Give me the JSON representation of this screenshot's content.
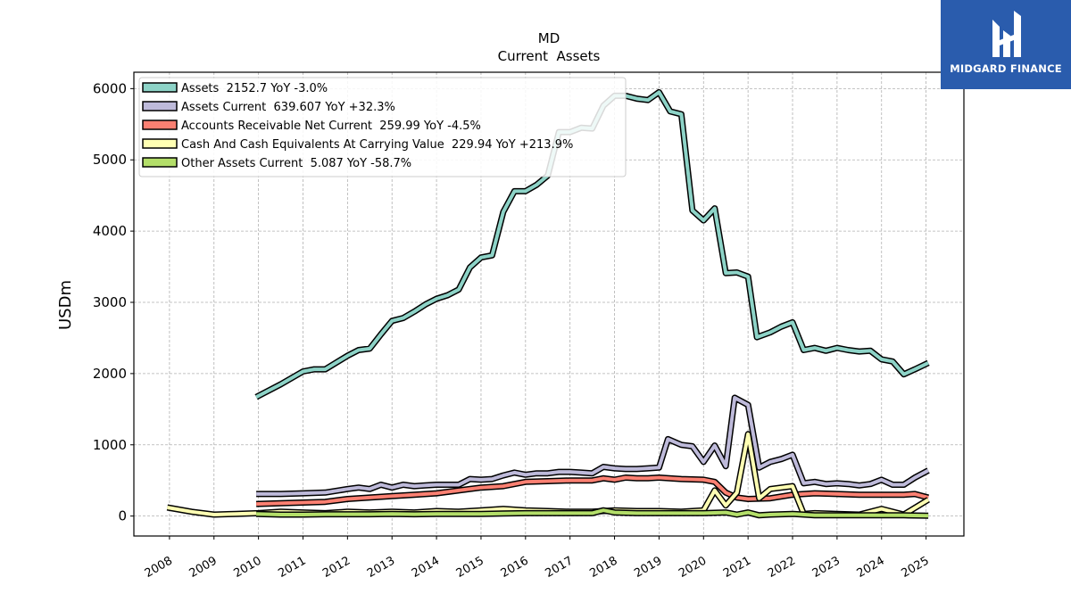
{
  "brand": {
    "name": "MIDGARD FINANCE",
    "color": "#2a5cad",
    "icon": "midgard-logo-icon"
  },
  "chart_data": {
    "type": "line",
    "title": "MD",
    "subtitle": "Current  Assets",
    "ylabel": "USDm",
    "xlabel": "",
    "xlim": [
      2007.2,
      2025.85
    ],
    "ylim": [
      -280,
      6230
    ],
    "yticks": [
      0,
      1000,
      2000,
      3000,
      4000,
      5000,
      6000
    ],
    "xticks": [
      2008,
      2009,
      2010,
      2011,
      2012,
      2013,
      2014,
      2015,
      2016,
      2017,
      2018,
      2019,
      2020,
      2021,
      2022,
      2023,
      2024,
      2025
    ],
    "grid": true,
    "legend_position": "top-left",
    "series": [
      {
        "name": "Assets",
        "legend": "Assets  2152.7 YoY -3.0%",
        "color": "#8dd3c7",
        "points": [
          [
            2009.95,
            1670
          ],
          [
            2010.5,
            1850
          ],
          [
            2011.0,
            2030
          ],
          [
            2011.25,
            2060
          ],
          [
            2011.5,
            2060
          ],
          [
            2012.0,
            2250
          ],
          [
            2012.25,
            2330
          ],
          [
            2012.5,
            2350
          ],
          [
            2012.75,
            2550
          ],
          [
            2013.0,
            2740
          ],
          [
            2013.25,
            2780
          ],
          [
            2013.5,
            2870
          ],
          [
            2013.75,
            2970
          ],
          [
            2014.0,
            3050
          ],
          [
            2014.25,
            3100
          ],
          [
            2014.5,
            3180
          ],
          [
            2014.75,
            3490
          ],
          [
            2015.0,
            3630
          ],
          [
            2015.25,
            3660
          ],
          [
            2015.5,
            4270
          ],
          [
            2015.75,
            4560
          ],
          [
            2016.0,
            4560
          ],
          [
            2016.25,
            4650
          ],
          [
            2016.5,
            4780
          ],
          [
            2016.75,
            5390
          ],
          [
            2017.0,
            5390
          ],
          [
            2017.25,
            5450
          ],
          [
            2017.5,
            5440
          ],
          [
            2017.75,
            5760
          ],
          [
            2018.0,
            5900
          ],
          [
            2018.25,
            5900
          ],
          [
            2018.5,
            5860
          ],
          [
            2018.75,
            5840
          ],
          [
            2019.0,
            5950
          ],
          [
            2019.25,
            5680
          ],
          [
            2019.5,
            5640
          ],
          [
            2019.75,
            4290
          ],
          [
            2020.0,
            4150
          ],
          [
            2020.25,
            4320
          ],
          [
            2020.5,
            3410
          ],
          [
            2020.75,
            3420
          ],
          [
            2021.0,
            3360
          ],
          [
            2021.2,
            2510
          ],
          [
            2021.5,
            2580
          ],
          [
            2021.75,
            2660
          ],
          [
            2022.0,
            2720
          ],
          [
            2022.25,
            2330
          ],
          [
            2022.5,
            2360
          ],
          [
            2022.75,
            2320
          ],
          [
            2023.0,
            2360
          ],
          [
            2023.25,
            2330
          ],
          [
            2023.5,
            2310
          ],
          [
            2023.75,
            2320
          ],
          [
            2024.0,
            2200
          ],
          [
            2024.25,
            2170
          ],
          [
            2024.5,
            1990
          ],
          [
            2024.75,
            2060
          ],
          [
            2025.05,
            2150
          ]
        ]
      },
      {
        "name": "Assets Current",
        "legend": "Assets Current  639.607 YoY +32.3%",
        "color": "#bebada",
        "points": [
          [
            2009.95,
            310
          ],
          [
            2010.5,
            310
          ],
          [
            2011.0,
            320
          ],
          [
            2011.5,
            330
          ],
          [
            2012.0,
            380
          ],
          [
            2012.25,
            400
          ],
          [
            2012.5,
            380
          ],
          [
            2012.75,
            440
          ],
          [
            2013.0,
            400
          ],
          [
            2013.25,
            440
          ],
          [
            2013.5,
            420
          ],
          [
            2013.75,
            430
          ],
          [
            2014.0,
            440
          ],
          [
            2014.25,
            440
          ],
          [
            2014.5,
            440
          ],
          [
            2014.75,
            520
          ],
          [
            2015.0,
            510
          ],
          [
            2015.25,
            520
          ],
          [
            2015.5,
            570
          ],
          [
            2015.75,
            610
          ],
          [
            2016.0,
            580
          ],
          [
            2016.25,
            600
          ],
          [
            2016.5,
            600
          ],
          [
            2016.75,
            620
          ],
          [
            2017.0,
            620
          ],
          [
            2017.25,
            610
          ],
          [
            2017.5,
            600
          ],
          [
            2017.75,
            690
          ],
          [
            2018.0,
            670
          ],
          [
            2018.25,
            660
          ],
          [
            2018.5,
            660
          ],
          [
            2018.75,
            670
          ],
          [
            2019.0,
            680
          ],
          [
            2019.2,
            1080
          ],
          [
            2019.5,
            1000
          ],
          [
            2019.75,
            980
          ],
          [
            2020.0,
            760
          ],
          [
            2020.25,
            990
          ],
          [
            2020.5,
            700
          ],
          [
            2020.7,
            1660
          ],
          [
            2021.0,
            1560
          ],
          [
            2021.25,
            680
          ],
          [
            2021.5,
            760
          ],
          [
            2021.75,
            800
          ],
          [
            2022.0,
            860
          ],
          [
            2022.25,
            460
          ],
          [
            2022.5,
            480
          ],
          [
            2022.75,
            450
          ],
          [
            2023.0,
            460
          ],
          [
            2023.25,
            450
          ],
          [
            2023.5,
            430
          ],
          [
            2023.75,
            450
          ],
          [
            2024.0,
            510
          ],
          [
            2024.25,
            440
          ],
          [
            2024.5,
            440
          ],
          [
            2024.75,
            540
          ],
          [
            2025.05,
            640
          ]
        ]
      },
      {
        "name": "Accounts Receivable Net Current",
        "legend": "Accounts Receivable Net Current  259.99 YoY -4.5%",
        "color": "#fb8072",
        "points": [
          [
            2009.95,
            170
          ],
          [
            2010.5,
            180
          ],
          [
            2011.0,
            190
          ],
          [
            2011.5,
            200
          ],
          [
            2012.0,
            240
          ],
          [
            2012.5,
            260
          ],
          [
            2013.0,
            280
          ],
          [
            2013.5,
            300
          ],
          [
            2014.0,
            320
          ],
          [
            2014.5,
            360
          ],
          [
            2015.0,
            400
          ],
          [
            2015.5,
            420
          ],
          [
            2016.0,
            480
          ],
          [
            2016.5,
            490
          ],
          [
            2017.0,
            500
          ],
          [
            2017.5,
            500
          ],
          [
            2017.75,
            530
          ],
          [
            2018.0,
            510
          ],
          [
            2018.25,
            540
          ],
          [
            2018.5,
            530
          ],
          [
            2018.75,
            530
          ],
          [
            2019.0,
            540
          ],
          [
            2019.5,
            520
          ],
          [
            2020.0,
            510
          ],
          [
            2020.25,
            480
          ],
          [
            2020.5,
            330
          ],
          [
            2020.75,
            260
          ],
          [
            2021.0,
            240
          ],
          [
            2021.5,
            250
          ],
          [
            2022.0,
            300
          ],
          [
            2022.5,
            320
          ],
          [
            2023.0,
            310
          ],
          [
            2023.5,
            300
          ],
          [
            2024.0,
            300
          ],
          [
            2024.5,
            300
          ],
          [
            2024.75,
            310
          ],
          [
            2025.05,
            260
          ]
        ]
      },
      {
        "name": "Cash And Cash Equivalents At Carrying Value",
        "legend": "Cash And Cash Equivalents At Carrying Value  229.94 YoY +213.9%",
        "color": "#ffffb3",
        "points": [
          [
            2007.95,
            120
          ],
          [
            2008.5,
            60
          ],
          [
            2009.0,
            20
          ],
          [
            2009.5,
            30
          ],
          [
            2010.0,
            40
          ],
          [
            2010.5,
            60
          ],
          [
            2011.0,
            50
          ],
          [
            2011.5,
            40
          ],
          [
            2012.0,
            60
          ],
          [
            2012.5,
            50
          ],
          [
            2013.0,
            60
          ],
          [
            2013.5,
            50
          ],
          [
            2014.0,
            70
          ],
          [
            2014.5,
            60
          ],
          [
            2015.0,
            80
          ],
          [
            2015.5,
            100
          ],
          [
            2016.0,
            80
          ],
          [
            2016.5,
            70
          ],
          [
            2017.0,
            60
          ],
          [
            2017.5,
            60
          ],
          [
            2018.0,
            80
          ],
          [
            2018.5,
            70
          ],
          [
            2019.0,
            70
          ],
          [
            2019.5,
            60
          ],
          [
            2020.0,
            80
          ],
          [
            2020.25,
            360
          ],
          [
            2020.5,
            150
          ],
          [
            2020.75,
            330
          ],
          [
            2021.0,
            1150
          ],
          [
            2021.25,
            250
          ],
          [
            2021.5,
            380
          ],
          [
            2022.0,
            420
          ],
          [
            2022.25,
            30
          ],
          [
            2022.5,
            40
          ],
          [
            2023.0,
            30
          ],
          [
            2023.5,
            20
          ],
          [
            2024.0,
            100
          ],
          [
            2024.5,
            20
          ],
          [
            2025.05,
            230
          ]
        ]
      },
      {
        "name": "Other Assets Current",
        "legend": "Other Assets Current  5.087 YoY -58.7%",
        "color": "#b3de69",
        "points": [
          [
            2009.95,
            30
          ],
          [
            2010.5,
            20
          ],
          [
            2011.0,
            20
          ],
          [
            2011.5,
            25
          ],
          [
            2012.0,
            25
          ],
          [
            2012.5,
            25
          ],
          [
            2013.0,
            30
          ],
          [
            2013.5,
            25
          ],
          [
            2014.0,
            30
          ],
          [
            2014.5,
            30
          ],
          [
            2015.0,
            30
          ],
          [
            2015.5,
            35
          ],
          [
            2016.0,
            40
          ],
          [
            2016.5,
            40
          ],
          [
            2017.0,
            40
          ],
          [
            2017.5,
            40
          ],
          [
            2017.75,
            80
          ],
          [
            2018.0,
            50
          ],
          [
            2018.5,
            40
          ],
          [
            2019.0,
            40
          ],
          [
            2019.5,
            40
          ],
          [
            2020.0,
            40
          ],
          [
            2020.5,
            50
          ],
          [
            2020.75,
            20
          ],
          [
            2021.0,
            50
          ],
          [
            2021.25,
            10
          ],
          [
            2021.5,
            20
          ],
          [
            2022.0,
            30
          ],
          [
            2022.5,
            10
          ],
          [
            2023.0,
            10
          ],
          [
            2023.5,
            10
          ],
          [
            2024.0,
            10
          ],
          [
            2024.5,
            10
          ],
          [
            2025.05,
            5
          ]
        ]
      }
    ]
  }
}
